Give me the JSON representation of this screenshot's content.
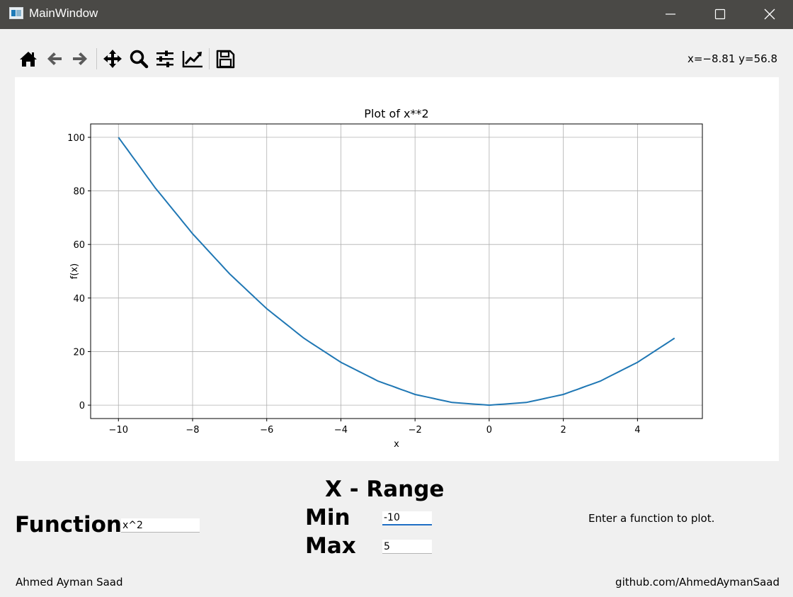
{
  "window": {
    "title": "MainWindow"
  },
  "toolbar": {
    "buttons": [
      {
        "name": "home-icon"
      },
      {
        "name": "back-arrow-icon"
      },
      {
        "name": "forward-arrow-icon"
      },
      {
        "name": "pan-move-icon"
      },
      {
        "name": "zoom-magnifier-icon"
      },
      {
        "name": "configure-subplots-icon"
      },
      {
        "name": "edit-axes-icon"
      },
      {
        "name": "save-floppy-icon"
      }
    ],
    "coords": "x=−8.81 y=56.8"
  },
  "chart_data": {
    "type": "line",
    "title": "Plot of x**2",
    "xlabel": "x",
    "ylabel": "f(x)",
    "xlim": [
      -10.75,
      5.75
    ],
    "ylim": [
      -5,
      105
    ],
    "xticks": [
      -10,
      -8,
      -6,
      -4,
      -2,
      0,
      2,
      4
    ],
    "yticks": [
      0,
      20,
      40,
      60,
      80,
      100
    ],
    "xtick_labels": [
      "−10",
      "−8",
      "−6",
      "−4",
      "−2",
      "0",
      "2",
      "4"
    ],
    "ytick_labels": [
      "0",
      "20",
      "40",
      "60",
      "80",
      "100"
    ],
    "grid": true,
    "series": [
      {
        "color": "#1f77b4",
        "x": [
          -10,
          -9,
          -8,
          -7,
          -6,
          -5,
          -4,
          -3,
          -2,
          -1,
          0,
          1,
          2,
          3,
          4,
          5
        ],
        "y": [
          100,
          81,
          64,
          49,
          36,
          25,
          16,
          9,
          4,
          1,
          0,
          1,
          4,
          9,
          16,
          25
        ]
      }
    ]
  },
  "controls": {
    "range_title": "X - Range",
    "function_label": "Function",
    "function_value": "x^2",
    "min_label": "Min",
    "min_value": "-10",
    "max_label": "Max",
    "max_value": "5",
    "hint": "Enter a function to plot."
  },
  "footer": {
    "author": "Ahmed Ayman Saad",
    "repo": "github.com/AhmedAymanSaad"
  }
}
